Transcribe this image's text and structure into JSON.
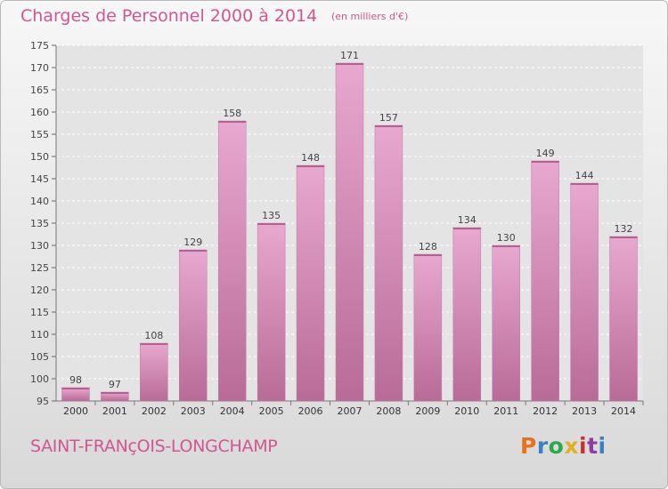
{
  "header": {
    "title": "Charges de Personnel 2000 à 2014",
    "subtitle": "(en milliers d'€)"
  },
  "footer": {
    "commune": "SAINT-FRANçOIS-LONGCHAMP",
    "logo": {
      "text": "Proxiti",
      "colors": [
        "#e8721c",
        "#3b7fc4",
        "#2aa84a",
        "#e0b020",
        "#c8322e",
        "#8a3ea0",
        "#3b7fc4"
      ]
    }
  },
  "chart_data": {
    "type": "bar",
    "title": "Charges de Personnel 2000 à 2014",
    "subtitle": "(en milliers d'€)",
    "xlabel": "",
    "ylabel": "",
    "categories": [
      "2000",
      "2001",
      "2002",
      "2003",
      "2004",
      "2005",
      "2006",
      "2007",
      "2008",
      "2009",
      "2010",
      "2011",
      "2012",
      "2013",
      "2014"
    ],
    "values": [
      98,
      97,
      108,
      129,
      158,
      135,
      148,
      171,
      157,
      128,
      134,
      130,
      149,
      144,
      132
    ],
    "ylim": [
      95,
      175
    ],
    "yticks": [
      95,
      100,
      105,
      110,
      115,
      120,
      125,
      130,
      135,
      140,
      145,
      150,
      155,
      160,
      165,
      170,
      175
    ],
    "grid": true,
    "legend": "none",
    "bar_color": "#d184b1",
    "label_color": "#444444"
  }
}
